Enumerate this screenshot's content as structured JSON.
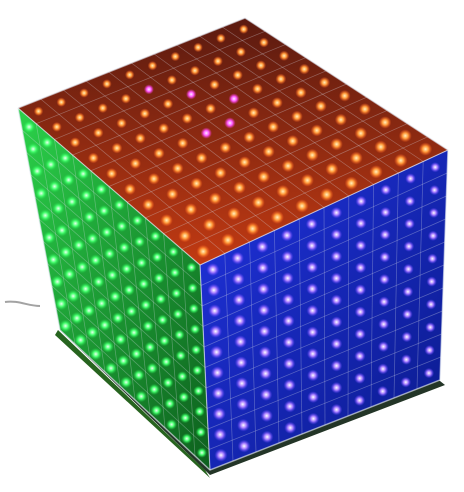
{
  "image": {
    "subject": "LED cube",
    "led_grid_size": 10,
    "background_color": "#ffffff",
    "faces": [
      {
        "name": "top",
        "color_name": "red-orange",
        "led_color": "#ff7a2a",
        "glow_color": "#ffb15a",
        "panel_color": "#b8340d"
      },
      {
        "name": "left",
        "color_name": "green",
        "led_color": "#42ff6a",
        "glow_color": "#b6ffc4",
        "panel_color": "#1a9a2c"
      },
      {
        "name": "right",
        "color_name": "blue",
        "led_color": "#9b6bff",
        "glow_color": "#e5d6ff",
        "panel_color": "#1e2fb8"
      }
    ],
    "accent_colors": {
      "magenta_leds": "#ff5cff",
      "wire_frame": "#d8dce8",
      "dark_base": "#0b1f10"
    }
  }
}
